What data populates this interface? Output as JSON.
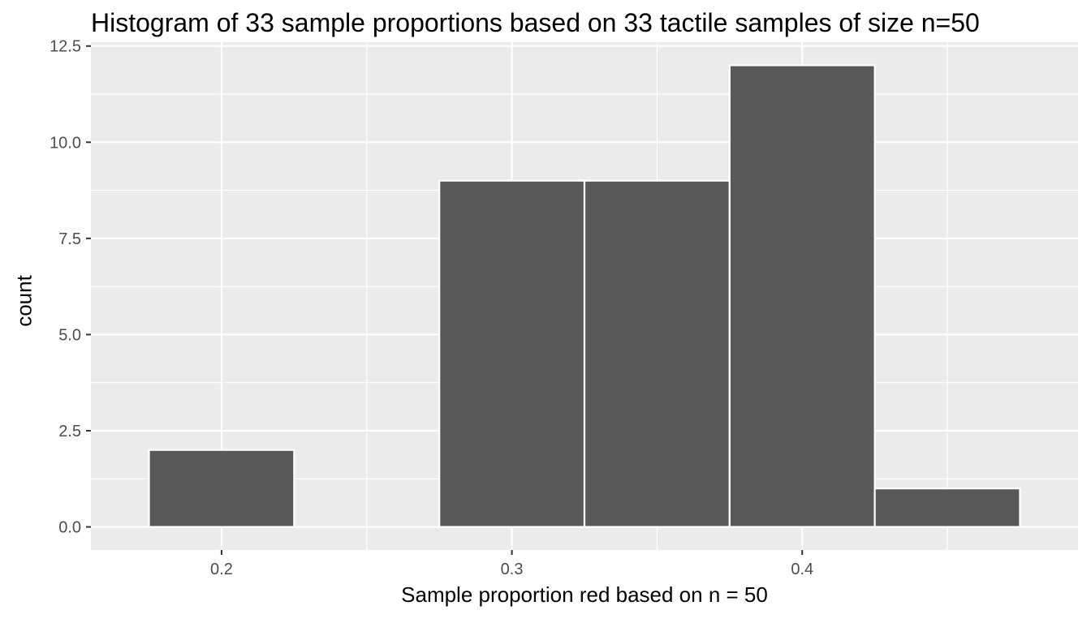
{
  "chart_data": {
    "type": "bar",
    "subtype": "histogram",
    "title": "Histogram of 33 sample proportions based on 33 tactile samples of size n=50",
    "xlabel": "Sample proportion red based on n = 50",
    "ylabel": "count",
    "bin_width": 0.05,
    "bins": [
      {
        "start": 0.175,
        "end": 0.225,
        "count": 2
      },
      {
        "start": 0.225,
        "end": 0.275,
        "count": 0
      },
      {
        "start": 0.275,
        "end": 0.325,
        "count": 9
      },
      {
        "start": 0.325,
        "end": 0.375,
        "count": 9
      },
      {
        "start": 0.375,
        "end": 0.425,
        "count": 12
      },
      {
        "start": 0.425,
        "end": 0.475,
        "count": 1
      }
    ],
    "xlim": [
      0.155,
      0.495
    ],
    "ylim": [
      -0.6,
      12.6
    ],
    "x_ticks": [
      0.2,
      0.3,
      0.4
    ],
    "x_tick_labels": [
      "0.2",
      "0.3",
      "0.4"
    ],
    "x_minor_gridlines": [
      0.25,
      0.35,
      0.45
    ],
    "y_ticks": [
      0,
      2.5,
      5,
      7.5,
      10,
      12.5
    ],
    "y_tick_labels": [
      "0.0",
      "2.5",
      "5.0",
      "7.5",
      "10.0",
      "12.5"
    ],
    "y_minor_gridlines": [
      1.25,
      3.75,
      6.25,
      8.75,
      11.25
    ],
    "grid": true,
    "colors": {
      "panel_background": "#ebebeb",
      "gridline": "#ffffff",
      "bar_fill": "#595959",
      "bar_outline": "#ffffff",
      "tick_text": "#4d4d4d",
      "tick_mark": "#333333"
    }
  }
}
